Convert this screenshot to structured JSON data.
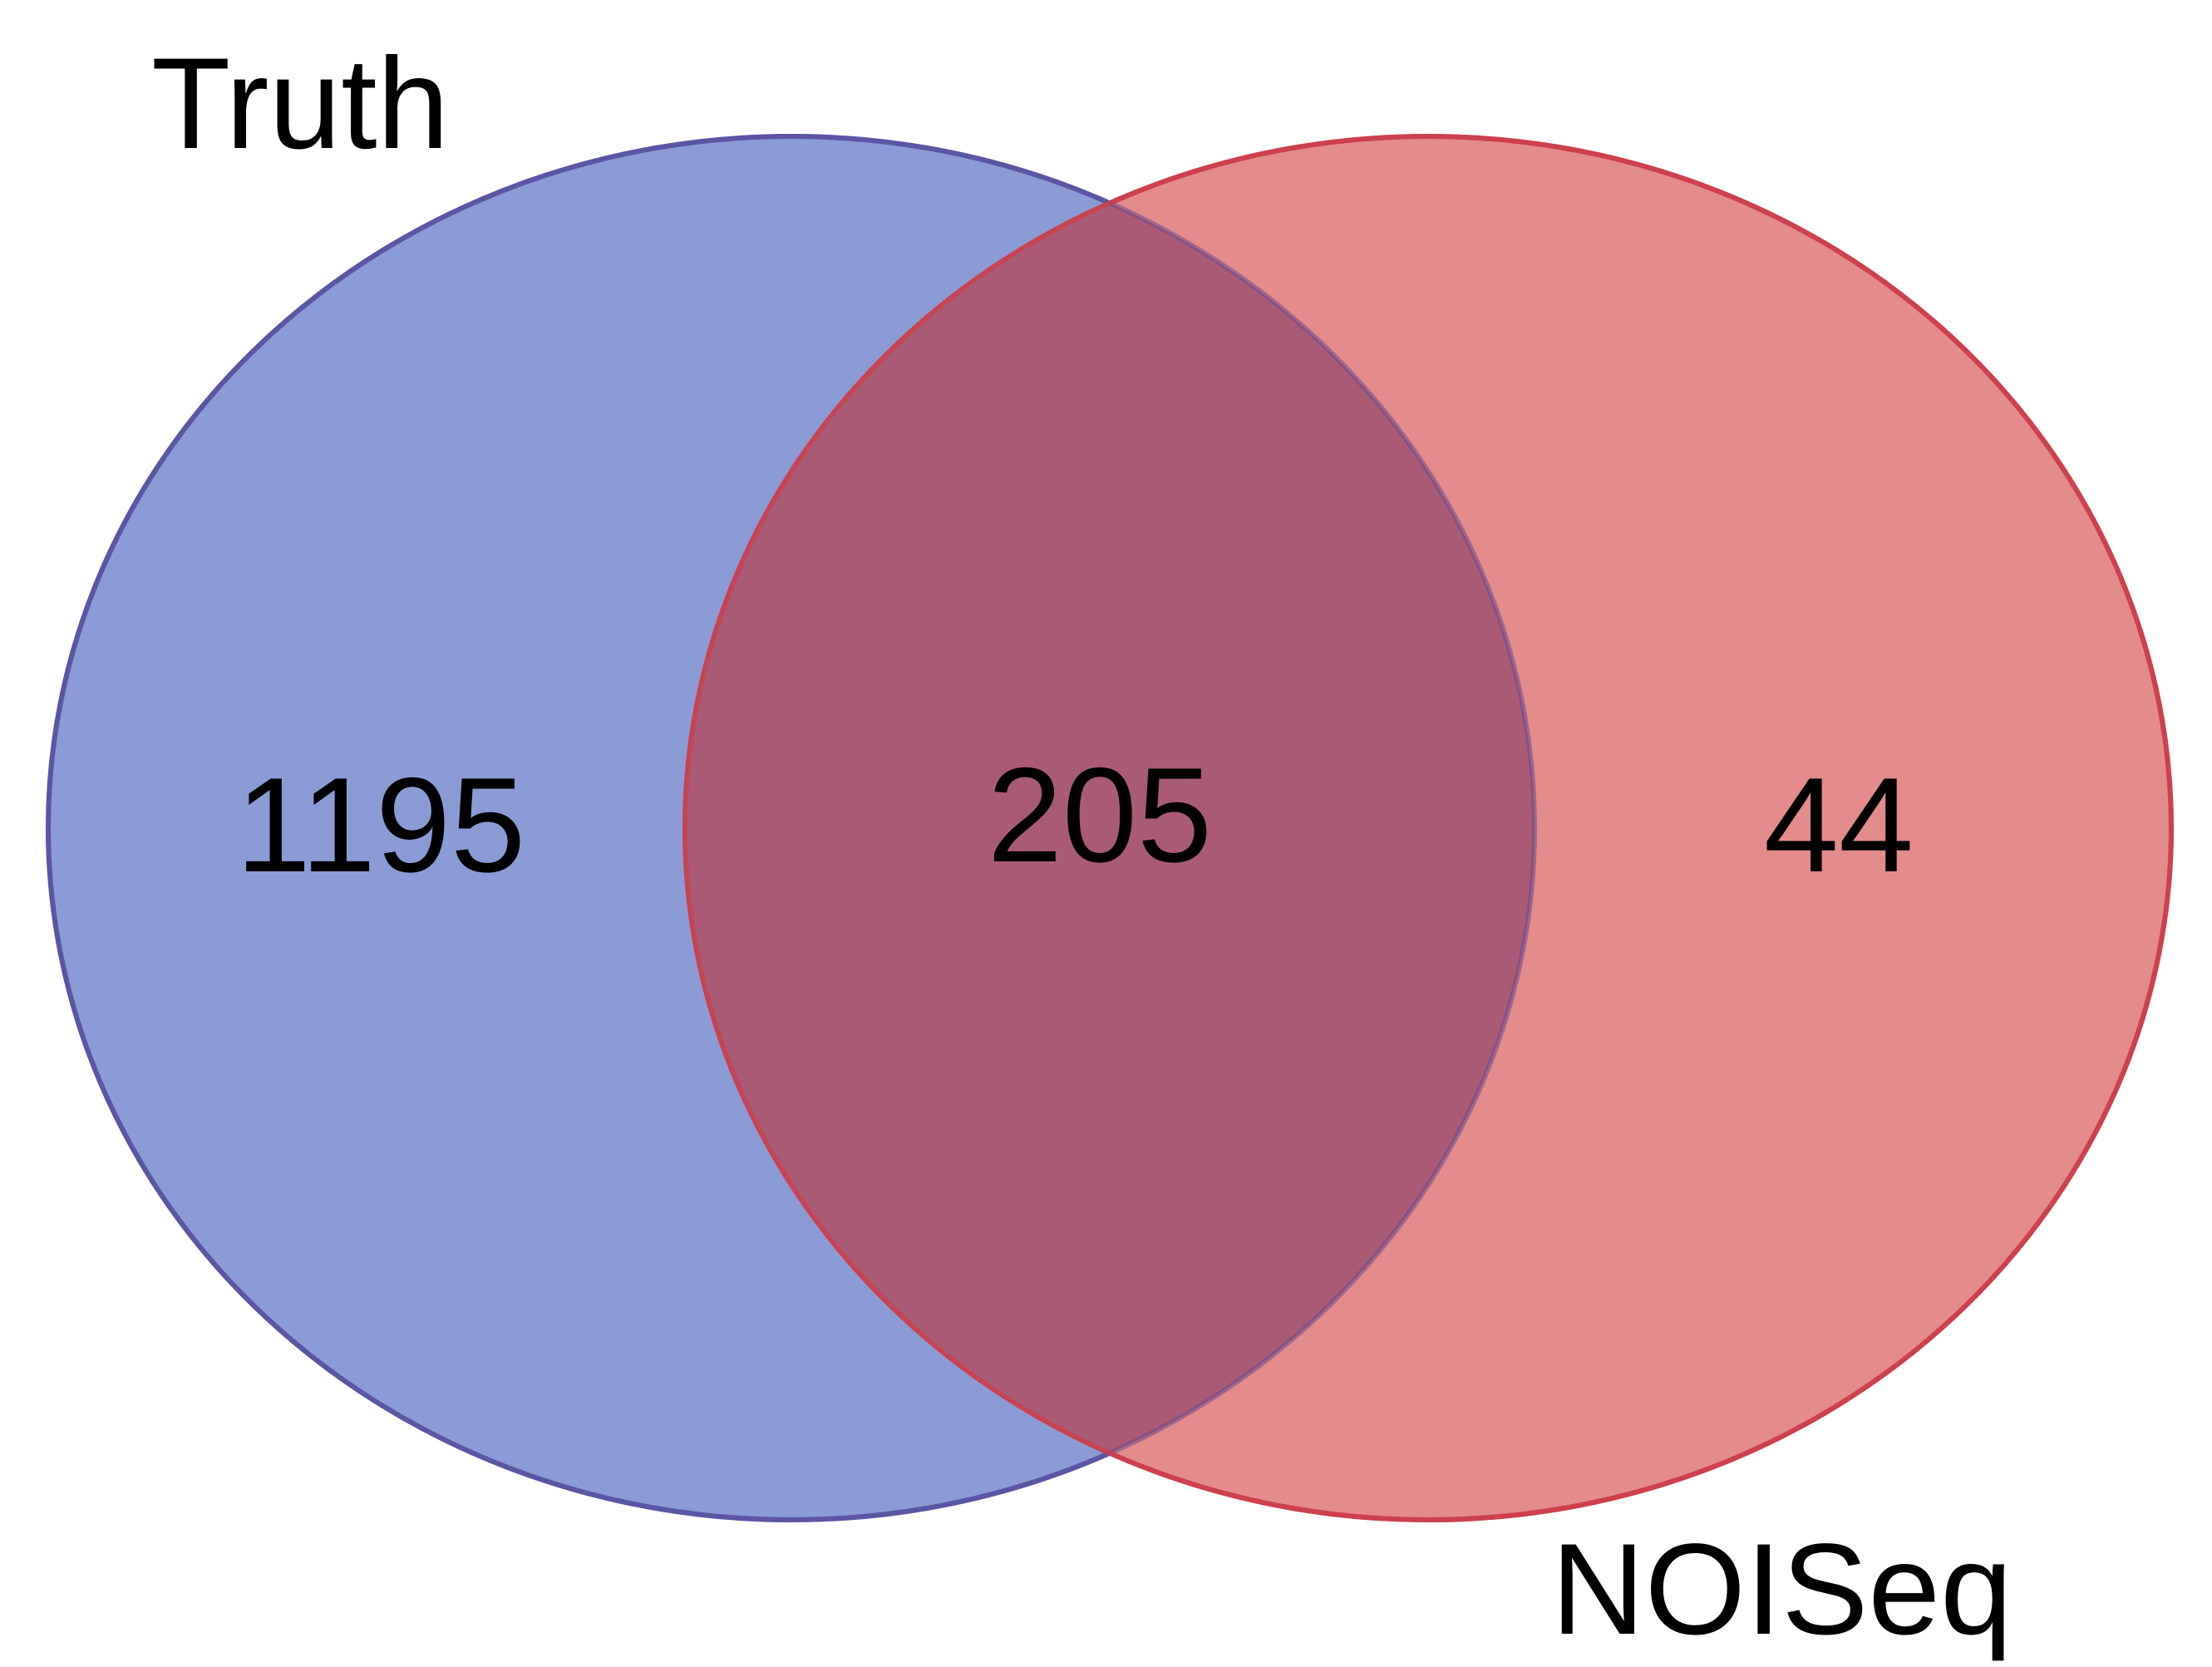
{
  "diagram": {
    "type": "venn",
    "sets": [
      {
        "name": "Truth",
        "only_count": "1195",
        "color": "#8a9bd5",
        "stroke": "#4a62c0"
      },
      {
        "name": "NOISeq",
        "only_count": "44",
        "color": "#e48b8b",
        "stroke": "#d9424d"
      }
    ],
    "intersection_count": "205",
    "intersection_color": "#a95b76"
  }
}
